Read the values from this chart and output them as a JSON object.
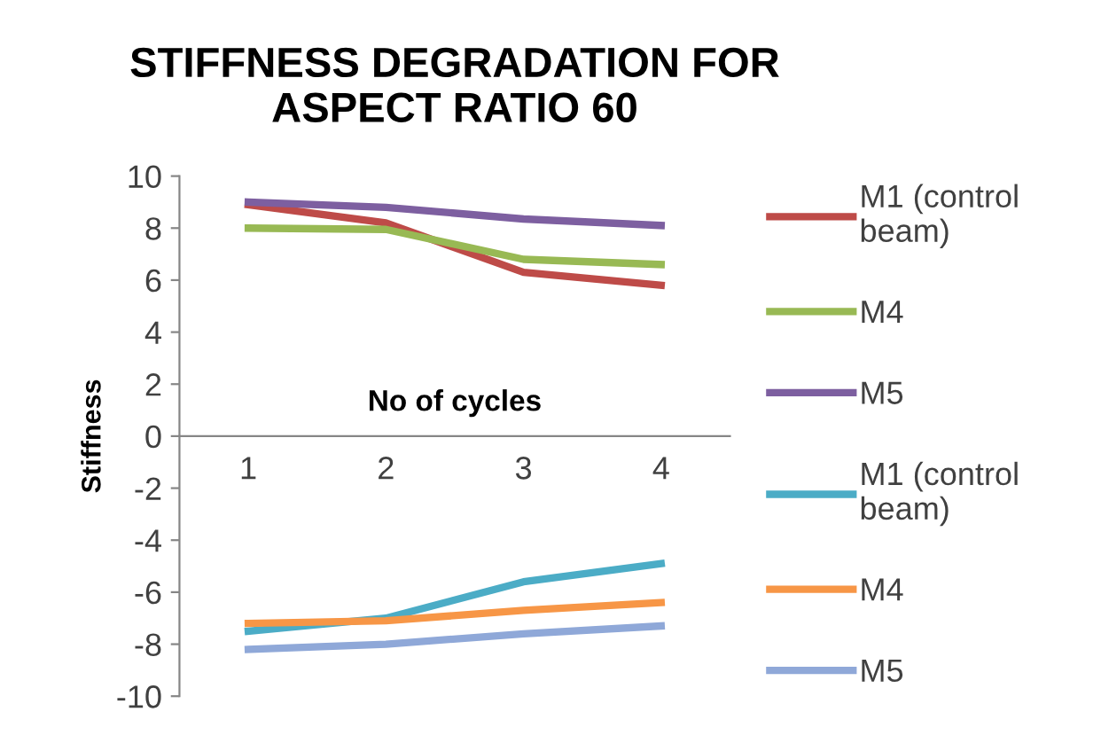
{
  "chart_data": {
    "type": "line",
    "title": "STIFFNESS DEGRADATION FOR\nASPECT RATIO 60",
    "xlabel": "No of cycles",
    "ylabel": "Stiffness",
    "categories": [
      "1",
      "2",
      "3",
      "4"
    ],
    "series": [
      {
        "name": "M1 (control\nbeam)",
        "color": "#be4b48",
        "values": [
          8.9,
          8.2,
          6.3,
          5.8
        ]
      },
      {
        "name": "M4",
        "color": "#98b954",
        "values": [
          8.0,
          7.95,
          6.8,
          6.6
        ]
      },
      {
        "name": "M5",
        "color": "#7d5fa0",
        "values": [
          9.0,
          8.8,
          8.35,
          8.1
        ]
      },
      {
        "name": "M1 (control\nbeam)",
        "color": "#4bacc6",
        "values": [
          -7.5,
          -7.0,
          -5.6,
          -4.9
        ]
      },
      {
        "name": "M4",
        "color": "#f79646",
        "values": [
          -7.2,
          -7.1,
          -6.7,
          -6.4
        ]
      },
      {
        "name": "M5",
        "color": "#8fa8d8",
        "values": [
          -8.2,
          -8.0,
          -7.6,
          -7.3
        ]
      }
    ],
    "ylim": [
      -10,
      10
    ],
    "yticks": [
      -10,
      -8,
      -6,
      -4,
      -2,
      0,
      2,
      4,
      6,
      8,
      10
    ],
    "grid": false,
    "legend": "right",
    "marker": "none",
    "line_style": "solid"
  }
}
